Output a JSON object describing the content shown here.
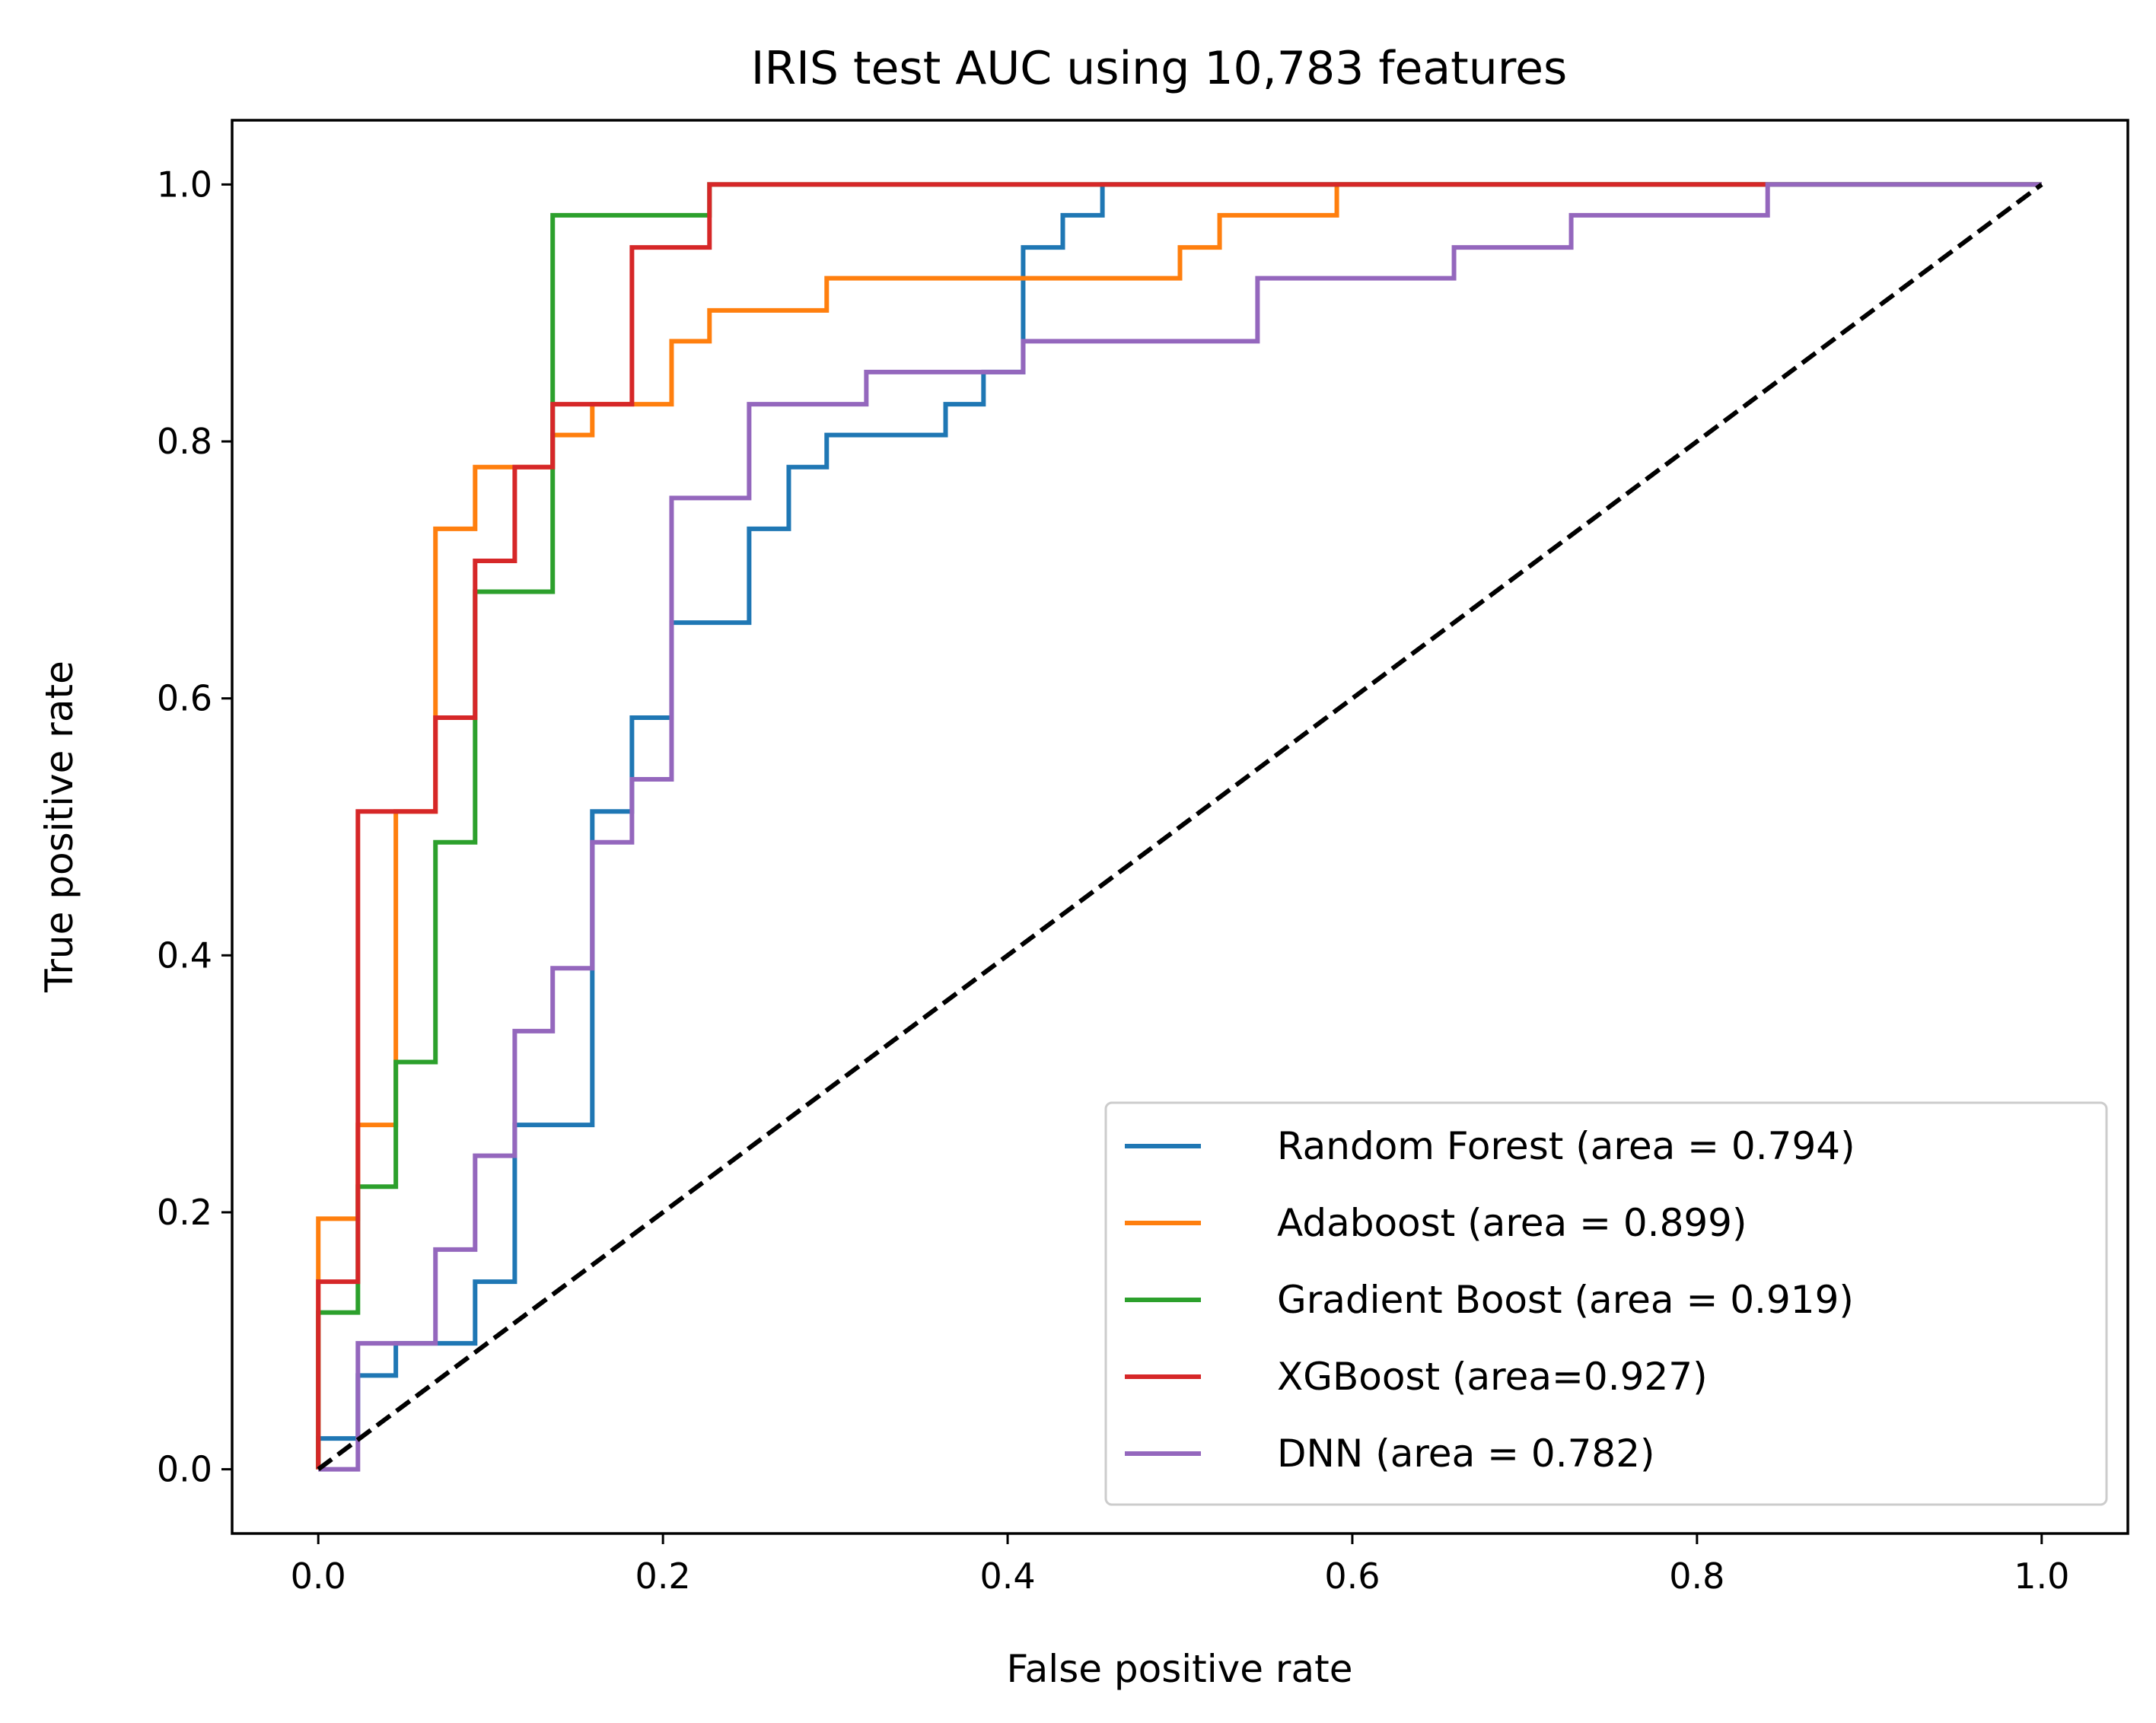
{
  "chart_data": {
    "type": "line",
    "title": "IRIS test AUC using 10,783 features",
    "xlabel": "False positive rate",
    "ylabel": "True positive rate",
    "xlim": [
      -0.05,
      1.05
    ],
    "ylim": [
      -0.05,
      1.05
    ],
    "xticks": [
      "0.0",
      "0.2",
      "0.4",
      "0.6",
      "0.8",
      "1.0"
    ],
    "yticks": [
      "0.0",
      "0.2",
      "0.4",
      "0.6",
      "0.8",
      "1.0"
    ],
    "grid": false,
    "legend_position": "lower-right",
    "diagonal": {
      "x": [
        0,
        1
      ],
      "y": [
        0,
        1
      ],
      "color": "#000000",
      "style": "dashed"
    },
    "series": [
      {
        "name": "Random Forest (area = 0.794)",
        "color": "#1f77b4",
        "points": [
          [
            0,
            0
          ],
          [
            0,
            0.024
          ],
          [
            0.023,
            0.024
          ],
          [
            0.023,
            0.073
          ],
          [
            0.045,
            0.073
          ],
          [
            0.045,
            0.098
          ],
          [
            0.091,
            0.098
          ],
          [
            0.091,
            0.146
          ],
          [
            0.114,
            0.146
          ],
          [
            0.114,
            0.268
          ],
          [
            0.159,
            0.268
          ],
          [
            0.159,
            0.512
          ],
          [
            0.182,
            0.512
          ],
          [
            0.182,
            0.585
          ],
          [
            0.205,
            0.585
          ],
          [
            0.205,
            0.659
          ],
          [
            0.25,
            0.659
          ],
          [
            0.25,
            0.732
          ],
          [
            0.273,
            0.732
          ],
          [
            0.273,
            0.78
          ],
          [
            0.295,
            0.78
          ],
          [
            0.295,
            0.805
          ],
          [
            0.364,
            0.805
          ],
          [
            0.364,
            0.829
          ],
          [
            0.386,
            0.829
          ],
          [
            0.386,
            0.854
          ],
          [
            0.409,
            0.854
          ],
          [
            0.409,
            0.951
          ],
          [
            0.432,
            0.951
          ],
          [
            0.432,
            0.976
          ],
          [
            0.455,
            0.976
          ],
          [
            0.455,
            1.0
          ],
          [
            1.0,
            1.0
          ]
        ]
      },
      {
        "name": "Adaboost (area = 0.899)",
        "color": "#ff7f0e",
        "points": [
          [
            0,
            0
          ],
          [
            0,
            0.195
          ],
          [
            0.023,
            0.195
          ],
          [
            0.023,
            0.268
          ],
          [
            0.045,
            0.268
          ],
          [
            0.045,
            0.512
          ],
          [
            0.068,
            0.512
          ],
          [
            0.068,
            0.732
          ],
          [
            0.091,
            0.732
          ],
          [
            0.091,
            0.78
          ],
          [
            0.136,
            0.78
          ],
          [
            0.136,
            0.805
          ],
          [
            0.159,
            0.805
          ],
          [
            0.159,
            0.829
          ],
          [
            0.205,
            0.829
          ],
          [
            0.205,
            0.878
          ],
          [
            0.227,
            0.878
          ],
          [
            0.227,
            0.902
          ],
          [
            0.295,
            0.902
          ],
          [
            0.295,
            0.927
          ],
          [
            0.5,
            0.927
          ],
          [
            0.5,
            0.951
          ],
          [
            0.523,
            0.951
          ],
          [
            0.523,
            0.976
          ],
          [
            0.591,
            0.976
          ],
          [
            0.591,
            1.0
          ],
          [
            1.0,
            1.0
          ]
        ]
      },
      {
        "name": "Gradient Boost (area = 0.919)",
        "color": "#2ca02c",
        "points": [
          [
            0,
            0
          ],
          [
            0,
            0.122
          ],
          [
            0.023,
            0.122
          ],
          [
            0.023,
            0.22
          ],
          [
            0.045,
            0.22
          ],
          [
            0.045,
            0.317
          ],
          [
            0.068,
            0.317
          ],
          [
            0.068,
            0.488
          ],
          [
            0.091,
            0.488
          ],
          [
            0.091,
            0.683
          ],
          [
            0.136,
            0.683
          ],
          [
            0.136,
            0.976
          ],
          [
            0.227,
            0.976
          ],
          [
            0.227,
            1.0
          ],
          [
            1.0,
            1.0
          ]
        ]
      },
      {
        "name": "XGBoost (area=0.927)",
        "color": "#d62728",
        "points": [
          [
            0,
            0
          ],
          [
            0,
            0.146
          ],
          [
            0.023,
            0.146
          ],
          [
            0.023,
            0.512
          ],
          [
            0.068,
            0.512
          ],
          [
            0.068,
            0.585
          ],
          [
            0.091,
            0.585
          ],
          [
            0.091,
            0.707
          ],
          [
            0.114,
            0.707
          ],
          [
            0.114,
            0.78
          ],
          [
            0.136,
            0.78
          ],
          [
            0.136,
            0.829
          ],
          [
            0.182,
            0.829
          ],
          [
            0.182,
            0.951
          ],
          [
            0.227,
            0.951
          ],
          [
            0.227,
            1.0
          ],
          [
            0.841,
            1.0
          ]
        ]
      },
      {
        "name": "DNN (area = 0.782)",
        "color": "#9467bd",
        "points": [
          [
            0,
            0
          ],
          [
            0.023,
            0
          ],
          [
            0.023,
            0.098
          ],
          [
            0.068,
            0.098
          ],
          [
            0.068,
            0.171
          ],
          [
            0.091,
            0.171
          ],
          [
            0.091,
            0.244
          ],
          [
            0.114,
            0.244
          ],
          [
            0.114,
            0.341
          ],
          [
            0.136,
            0.341
          ],
          [
            0.136,
            0.39
          ],
          [
            0.159,
            0.39
          ],
          [
            0.159,
            0.488
          ],
          [
            0.182,
            0.488
          ],
          [
            0.182,
            0.537
          ],
          [
            0.205,
            0.537
          ],
          [
            0.205,
            0.756
          ],
          [
            0.25,
            0.756
          ],
          [
            0.25,
            0.829
          ],
          [
            0.318,
            0.829
          ],
          [
            0.318,
            0.854
          ],
          [
            0.409,
            0.854
          ],
          [
            0.409,
            0.878
          ],
          [
            0.545,
            0.878
          ],
          [
            0.545,
            0.927
          ],
          [
            0.659,
            0.927
          ],
          [
            0.659,
            0.951
          ],
          [
            0.727,
            0.951
          ],
          [
            0.727,
            0.976
          ],
          [
            0.841,
            0.976
          ],
          [
            0.841,
            1.0
          ],
          [
            1.0,
            1.0
          ]
        ]
      }
    ]
  }
}
